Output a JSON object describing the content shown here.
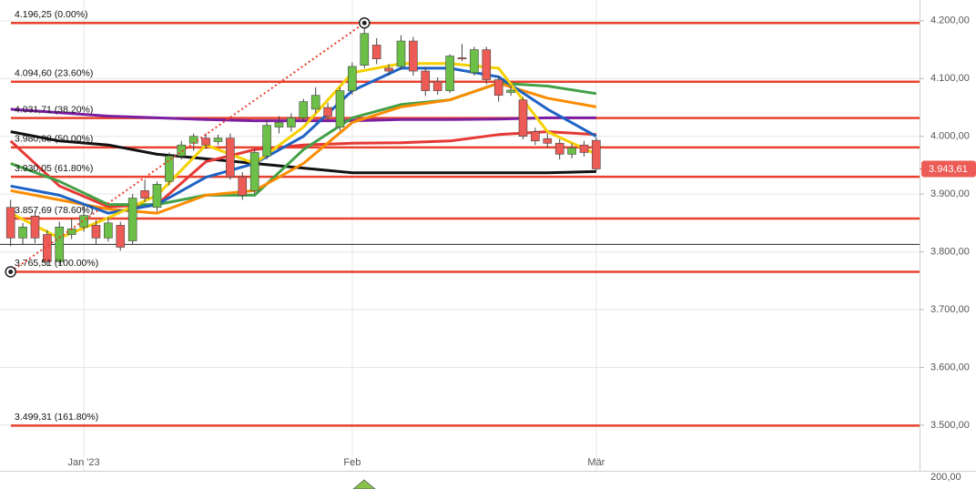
{
  "chart_data": {
    "type": "candlestick",
    "xlim": [
      -6.87,
      68.5
    ],
    "xticks": [
      {
        "value": 0,
        "label": "Jan '23"
      },
      {
        "value": 22,
        "label": "Feb"
      },
      {
        "value": 42,
        "label": "Mär"
      }
    ],
    "ylim": [
      3421,
      4236
    ],
    "yticks": [
      {
        "value": 3500,
        "label": "3.500,00"
      },
      {
        "value": 3600,
        "label": "3.600,00"
      },
      {
        "value": 3700,
        "label": "3.700,00"
      },
      {
        "value": 3800,
        "label": "3.800,00"
      },
      {
        "value": 3900,
        "label": "3.900,00"
      },
      {
        "value": 4000,
        "label": "4.000,00"
      },
      {
        "value": 4100,
        "label": "4.100,00"
      },
      {
        "value": 4200,
        "label": "4.200,00"
      }
    ],
    "grid": true,
    "up_color": "#6cbf47",
    "down_color": "#ec5b55",
    "candles": {
      "x": [
        -6,
        -5,
        -4,
        -3,
        -2,
        -1,
        0,
        1,
        2,
        3,
        4,
        5,
        6,
        7,
        8,
        9,
        10,
        11,
        12,
        13,
        14,
        15,
        16,
        17,
        18,
        19,
        20,
        21,
        22,
        23,
        24,
        25,
        26,
        27,
        28,
        29,
        30,
        31,
        32,
        33,
        34,
        35,
        36,
        37,
        38,
        39,
        40,
        41,
        42
      ],
      "open": [
        3877,
        3824,
        3862,
        3830,
        3783,
        3830,
        3843,
        3846,
        3824,
        3846,
        3819,
        3906,
        3877,
        3922,
        3966,
        3988,
        3997,
        3991,
        3997,
        3930,
        3906,
        3966,
        4016,
        4016,
        4032,
        4047,
        4050,
        4016,
        4079,
        4123,
        4158,
        4118,
        4121,
        4165,
        4113,
        4095,
        4079,
        4136,
        4110,
        4150,
        4098,
        4076,
        4063,
        4008,
        3996,
        3988,
        3969,
        3985,
        3993
      ],
      "high": [
        3890,
        3850,
        3870,
        3838,
        3852,
        3858,
        3880,
        3855,
        3860,
        3852,
        3900,
        3925,
        3922,
        3972,
        3992,
        4005,
        4005,
        4003,
        4005,
        3938,
        3978,
        4030,
        4035,
        4040,
        4065,
        4085,
        4058,
        4085,
        4128,
        4196.25,
        4170,
        4125,
        4175,
        4172,
        4120,
        4102,
        4142,
        4160,
        4155,
        4155,
        4105,
        4088,
        4068,
        4015,
        4005,
        3995,
        3988,
        3992,
        3998
      ],
      "low": [
        3810,
        3812,
        3815,
        3775,
        3778,
        3822,
        3835,
        3812,
        3818,
        3802,
        3812,
        3886,
        3870,
        3915,
        3960,
        3975,
        3978,
        3985,
        3925,
        3890,
        3900,
        3960,
        4005,
        4008,
        4025,
        4040,
        4028,
        4010,
        4072,
        4118,
        4125,
        4105,
        4115,
        4105,
        4070,
        4072,
        4075,
        4130,
        4105,
        4090,
        4060,
        4070,
        3995,
        3985,
        3980,
        3960,
        3962,
        3965,
        3940
      ],
      "close": [
        3824,
        3843,
        3824,
        3783,
        3843,
        3840,
        3863,
        3824,
        3850,
        3808,
        3893,
        3893,
        3917,
        3966,
        3985,
        4000,
        3985,
        3997,
        3930,
        3898,
        3972,
        4019,
        4024,
        4032,
        4060,
        4071,
        4035,
        4079,
        4121,
        4178,
        4134,
        4113,
        4165,
        4113,
        4079,
        4079,
        4139,
        4134,
        4150,
        4098,
        4071,
        4080,
        4000,
        3992,
        3988,
        3969,
        3980,
        3972,
        3943.61
      ]
    },
    "ma_x": [
      -6,
      -2,
      2,
      6,
      10,
      14,
      18,
      22,
      26,
      30,
      34,
      38,
      42
    ],
    "moving_averages": [
      {
        "color": "#111111",
        "values": [
          4008,
          3992,
          3985,
          3969,
          3961,
          3953,
          3945,
          3937,
          3937,
          3937,
          3937,
          3937,
          3939
        ]
      },
      {
        "color": "#7b1fa2",
        "values": [
          4047,
          4041,
          4035,
          4032,
          4029,
          4027,
          4027,
          4027,
          4029,
          4029,
          4030,
          4032,
          4032
        ]
      },
      {
        "color": "#e53935",
        "values": [
          3992,
          3914,
          3878,
          3882,
          3956,
          3977,
          3985,
          3988,
          3989,
          3992,
          4003,
          4008,
          4003
        ]
      },
      {
        "color": "#43a047",
        "values": [
          3953,
          3922,
          3882,
          3882,
          3898,
          3898,
          3977,
          4032,
          4055,
          4063,
          4092,
          4087,
          4074
        ]
      },
      {
        "color": "#fb8c00",
        "values": [
          3906,
          3890,
          3874,
          3867,
          3898,
          3906,
          3953,
          4024,
          4051,
          4063,
          4092,
          4066,
          4051
        ]
      },
      {
        "color": "#1e63c4",
        "values": [
          3914,
          3898,
          3867,
          3882,
          3929,
          3953,
          4000,
          4079,
          4118,
          4118,
          4103,
          4047,
          4000
        ]
      },
      {
        "color": "#f5d000",
        "values": [
          3867,
          3824,
          3859,
          3898,
          3985,
          3953,
          4016,
          4110,
          4126,
          4126,
          4118,
          4008,
          3969
        ]
      }
    ],
    "fib_color": "#e8412c",
    "fib_levels": [
      {
        "value": 4196.25,
        "label": "4.196,25 (0.00%)"
      },
      {
        "value": 4094.6,
        "label": "4.094,60 (23.60%)"
      },
      {
        "value": 4031.71,
        "label": "4.031,71 (38.20%)"
      },
      {
        "value": 3980.88,
        "label": "3.980,88 (50.00%)"
      },
      {
        "value": 3930.05,
        "label": "3.930,05 (61.80%)"
      },
      {
        "value": 3857.69,
        "label": "3.857,69 (78.60%)"
      },
      {
        "value": 3765.51,
        "label": "3.765,51 (100.00%)"
      },
      {
        "value": 3499.31,
        "label": "3.499,31 (161.80%)"
      }
    ],
    "horizontal_lines": [
      3813
    ],
    "trendline": {
      "x": [
        -6,
        23
      ],
      "values": [
        3765.51,
        4196.25
      ]
    },
    "last_price": {
      "value": 3943.61,
      "label": "3.943,61"
    },
    "lower_panel_label": "200,00"
  }
}
